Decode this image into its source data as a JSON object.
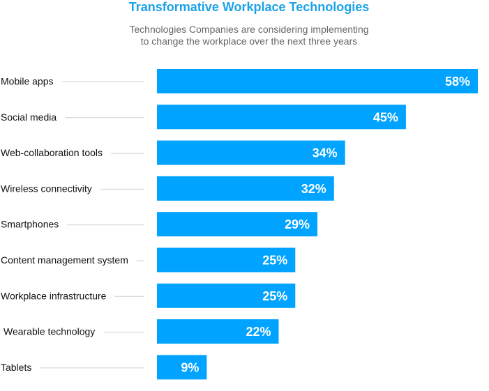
{
  "chart_data": {
    "type": "bar",
    "orientation": "horizontal",
    "title": "Transformative Workplace Technologies",
    "subtitle_lines": [
      "Technologies Companies are considering implementing",
      "to change the workplace over the next three years"
    ],
    "categories": [
      "Mobile apps",
      "Social media",
      "Web-collaboration tools",
      "Wireless connectivity",
      "Smartphones",
      "Content management system",
      "Workplace infrastructure",
      "Wearable technology",
      "Tablets"
    ],
    "values": [
      58,
      45,
      34,
      32,
      29,
      25,
      25,
      22,
      9
    ],
    "value_labels": [
      "58%",
      "45%",
      "34%",
      "32%",
      "29%",
      "25%",
      "25%",
      "22%",
      "9%"
    ],
    "xlim": [
      0,
      58
    ],
    "grid": false,
    "legend": "none"
  },
  "colors": {
    "bar": "#00a3ff",
    "title": "#1ba2e8",
    "subtitle": "#666666",
    "leader_line": "#cfcfcf",
    "label": "#111111",
    "value_text": "#ffffff"
  }
}
